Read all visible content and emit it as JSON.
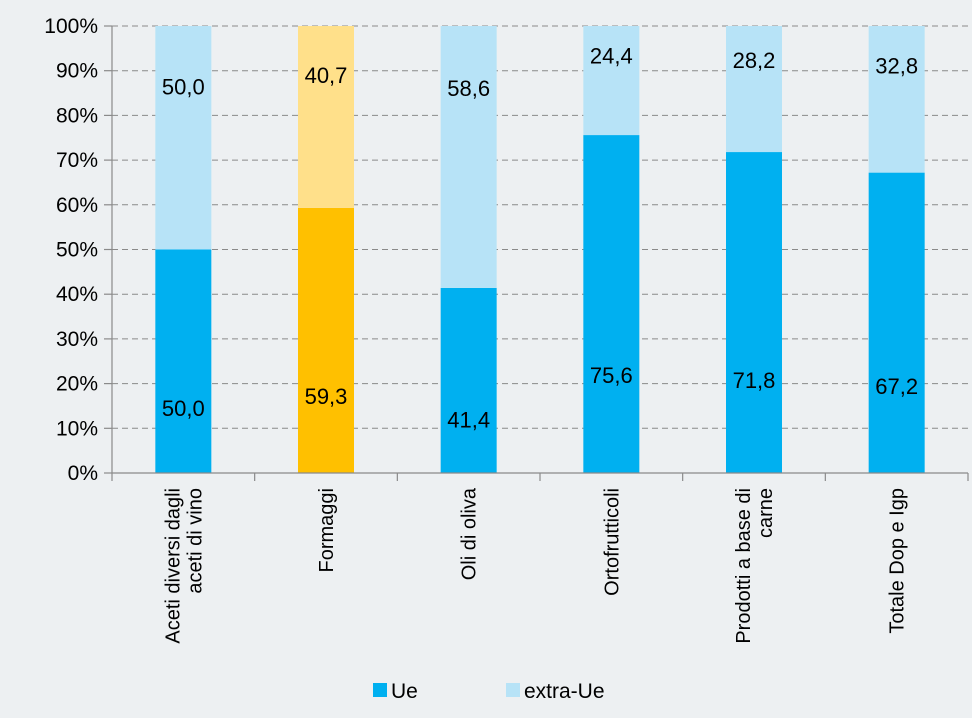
{
  "chart_data": {
    "type": "bar",
    "stacked": true,
    "percent": true,
    "categories": [
      [
        "Aceti diversi dagli",
        "aceti di vino"
      ],
      [
        "Formaggi"
      ],
      [
        "Oli di oliva"
      ],
      [
        "Ortofrutticoli"
      ],
      [
        "Prodotti a base di",
        "carne"
      ],
      [
        "Totale Dop e Igp"
      ]
    ],
    "series": [
      {
        "name": "Ue",
        "color": "#00b0f0",
        "values": [
          50.0,
          59.3,
          41.4,
          75.6,
          71.8,
          67.2
        ],
        "labels": [
          "50,0",
          "59,3",
          "41,4",
          "75,6",
          "71,8",
          "67,2"
        ]
      },
      {
        "name": "extra-Ue",
        "color": "#b7e3f7",
        "values": [
          50.0,
          40.7,
          58.6,
          24.4,
          28.2,
          32.8
        ],
        "labels": [
          "50,0",
          "40,7",
          "58,6",
          "24,4",
          "28,2",
          "32,8"
        ]
      }
    ],
    "highlight": {
      "category_index": 1,
      "colors": [
        "#ffc000",
        "#ffe08a"
      ]
    },
    "y_ticks": [
      "0%",
      "10%",
      "20%",
      "30%",
      "40%",
      "50%",
      "60%",
      "70%",
      "80%",
      "90%",
      "100%"
    ],
    "ylim": [
      0,
      100
    ],
    "grid": true,
    "legend_position": "bottom"
  }
}
